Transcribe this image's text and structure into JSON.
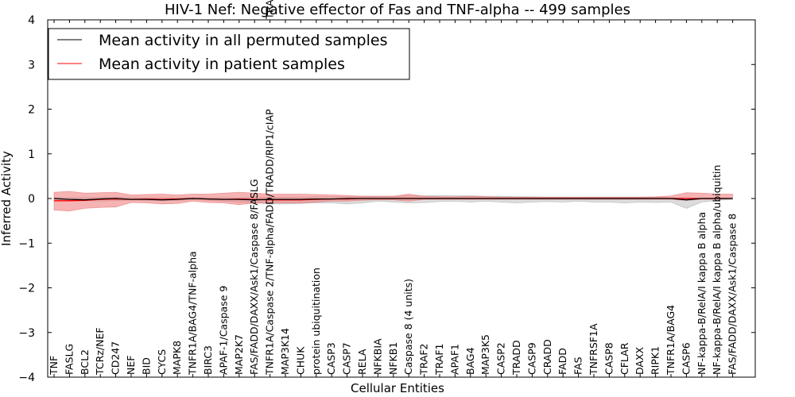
{
  "chart_data": {
    "type": "line",
    "title": "HIV-1 Nef: Negative effector of Fas and TNF-alpha -- 499 samples",
    "xlabel": "Cellular Entities",
    "ylabel": "Inferred Activity",
    "ylim": [
      -4,
      4
    ],
    "yticks": [
      -4,
      -3,
      -2,
      -1,
      0,
      1,
      2,
      3,
      4
    ],
    "ytick_labels": [
      "−4",
      "−3",
      "−2",
      "−1",
      "0",
      "1",
      "2",
      "3",
      "4"
    ],
    "categories": [
      "TNF",
      "FASLG",
      "BCL2",
      "TCRz/NEF",
      "CD247",
      "NEF",
      "BID",
      "CYCS",
      "MAPK8",
      "TNFR1A/BAG4/TNF-alpha",
      "BIRC3",
      "APAF-1/Caspase 9",
      "MAP2K7",
      "FAS/FADD/DAXX/Ask1/Caspase 8/FASLG",
      "TNFR1A/Caspase 2/TNF-alpha/FADD/TRADD/RIP1/cIAP",
      "MAP3K14",
      "CHUK",
      "protein ubiquitination",
      "CASP3",
      "CASP7",
      "RELA",
      "NFKBIA",
      "NFKB1",
      "Caspase 8 (4 units)",
      "TRAF2",
      "TRAF1",
      "APAF1",
      "BAG4",
      "MAP3K5",
      "CASP2",
      "TRADD",
      "CASP9",
      "CRADD",
      "FADD",
      "FAS",
      "TNFRSF1A",
      "CASP8",
      "CFLAR",
      "DAXX",
      "RIPK1",
      "TNFR1A/BAG4",
      "CASP6",
      "NF-kappa-B/RelA/I kappa B alpha",
      "NF-kappa-B/RelA/I kappa B alpha/ubiquitin",
      "FAS/FADD/DAXX/Ask1/Caspase 8"
    ],
    "overflow_label": "TRADD",
    "series": [
      {
        "name": "Mean activity in all permuted samples",
        "color": "#000000",
        "values": [
          0.0,
          -0.02,
          -0.03,
          -0.01,
          0.0,
          -0.02,
          -0.02,
          -0.03,
          -0.02,
          0.0,
          -0.01,
          -0.02,
          -0.02,
          -0.03,
          -0.02,
          -0.02,
          -0.02,
          -0.01,
          -0.01,
          0.0,
          0.0,
          0.0,
          0.0,
          0.0,
          0.0,
          0.0,
          0.0,
          0.0,
          0.0,
          0.0,
          0.0,
          0.0,
          0.0,
          0.0,
          0.0,
          0.0,
          0.0,
          0.0,
          0.0,
          0.0,
          0.0,
          -0.03,
          0.0,
          0.0,
          0.0
        ],
        "band_upper": [
          0.02,
          0.02,
          0.02,
          0.03,
          0.03,
          0.02,
          0.02,
          0.02,
          0.02,
          0.02,
          0.02,
          0.02,
          0.02,
          0.03,
          0.03,
          0.03,
          0.03,
          0.04,
          0.04,
          0.04,
          0.05,
          0.05,
          0.05,
          0.06,
          0.06,
          0.07,
          0.06,
          0.06,
          0.05,
          0.05,
          0.04,
          0.04,
          0.03,
          0.03,
          0.03,
          0.03,
          0.03,
          0.03,
          0.03,
          0.03,
          0.02,
          0.02,
          0.0,
          0.0,
          0.0
        ],
        "band_lower": [
          -0.02,
          -0.05,
          -0.05,
          -0.06,
          -0.05,
          -0.03,
          -0.04,
          -0.05,
          -0.04,
          -0.03,
          -0.04,
          -0.06,
          -0.08,
          -0.1,
          -0.12,
          -0.12,
          -0.11,
          -0.1,
          -0.1,
          -0.12,
          -0.1,
          -0.06,
          -0.08,
          -0.1,
          -0.09,
          -0.07,
          -0.06,
          -0.08,
          -0.06,
          -0.08,
          -0.1,
          -0.08,
          -0.07,
          -0.08,
          -0.06,
          -0.08,
          -0.08,
          -0.1,
          -0.08,
          -0.09,
          -0.08,
          -0.22,
          -0.08,
          -0.04,
          -0.02
        ]
      },
      {
        "name": "Mean activity in patient samples",
        "color": "#ff0000",
        "values": [
          -0.05,
          -0.05,
          -0.04,
          -0.02,
          -0.01,
          -0.02,
          -0.01,
          -0.02,
          -0.01,
          0.0,
          -0.01,
          -0.02,
          -0.01,
          -0.02,
          -0.03,
          -0.03,
          -0.03,
          -0.02,
          -0.01,
          -0.01,
          0.0,
          0.0,
          0.0,
          0.0,
          0.0,
          0.0,
          0.0,
          0.0,
          0.0,
          0.0,
          0.0,
          0.0,
          0.0,
          0.0,
          0.0,
          0.0,
          0.0,
          0.0,
          0.0,
          0.0,
          0.0,
          0.0,
          0.0,
          0.0,
          0.0
        ],
        "band_upper": [
          0.14,
          0.16,
          0.12,
          0.13,
          0.14,
          0.08,
          0.09,
          0.1,
          0.08,
          0.1,
          0.1,
          0.12,
          0.14,
          0.12,
          0.1,
          0.1,
          0.1,
          0.09,
          0.08,
          0.07,
          0.05,
          0.05,
          0.05,
          0.1,
          0.05,
          0.04,
          0.04,
          0.05,
          0.04,
          0.03,
          0.03,
          0.03,
          0.03,
          0.03,
          0.03,
          0.03,
          0.03,
          0.03,
          0.03,
          0.04,
          0.06,
          0.13,
          0.12,
          0.1,
          0.1
        ],
        "band_lower": [
          -0.26,
          -0.28,
          -0.22,
          -0.2,
          -0.19,
          -0.09,
          -0.1,
          -0.12,
          -0.11,
          -0.06,
          -0.09,
          -0.1,
          -0.14,
          -0.1,
          -0.1,
          -0.1,
          -0.1,
          -0.08,
          -0.06,
          -0.06,
          -0.04,
          -0.03,
          -0.03,
          -0.06,
          -0.02,
          -0.02,
          -0.02,
          -0.02,
          -0.02,
          -0.02,
          -0.02,
          -0.02,
          -0.02,
          -0.02,
          -0.02,
          -0.02,
          -0.02,
          -0.02,
          -0.02,
          -0.02,
          -0.02,
          -0.04,
          -0.02,
          -0.02,
          0.0
        ]
      }
    ],
    "legend": {
      "location": "top-left",
      "entries": [
        "Mean activity in all permuted samples",
        "Mean activity in patient samples"
      ]
    },
    "grid": false
  },
  "colors": {
    "permuted_line": "#000000",
    "permuted_band": "#bfbfbf",
    "patient_line": "#ff0000",
    "patient_band": "#f08080"
  }
}
